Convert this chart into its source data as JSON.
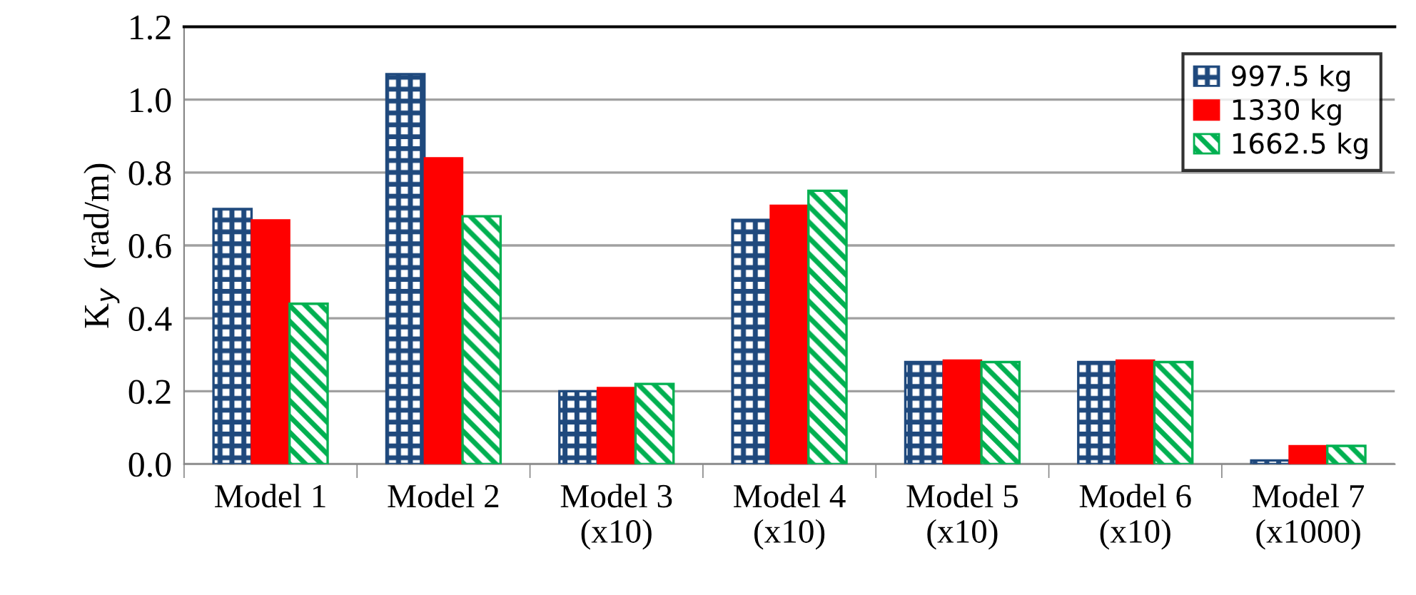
{
  "chart_data": {
    "type": "bar",
    "ylabel": "K$_{y}$  (rad/m)",
    "categories": [
      "Model 1",
      "Model 2",
      "Model 3\n(x10)",
      "Model 4\n(x10)",
      "Model 5\n(x10)",
      "Model 6\n(x10)",
      "Model 7\n(x1000)"
    ],
    "series": [
      {
        "name": "997.5 kg",
        "color": "#1f497d",
        "values": [
          0.7,
          1.07,
          0.2,
          0.67,
          0.28,
          0.28,
          0.01
        ]
      },
      {
        "name": "1330 kg",
        "color": "#ff0000",
        "values": [
          0.67,
          0.84,
          0.21,
          0.71,
          0.285,
          0.285,
          0.05
        ]
      },
      {
        "name": "1662.5 kg",
        "color": "#00b050",
        "values": [
          0.44,
          0.68,
          0.22,
          0.75,
          0.28,
          0.28,
          0.05
        ]
      }
    ],
    "ylim": [
      0,
      1.2
    ],
    "yticks": [
      {
        "value": 0,
        "label": "0.0"
      },
      {
        "value": 0.2,
        "label": "0.2"
      },
      {
        "value": 0.4,
        "label": "0.4"
      },
      {
        "value": 0.6,
        "label": "0.6"
      },
      {
        "value": 0.8,
        "label": "0.8"
      },
      {
        "value": 1.0,
        "label": "1.0"
      },
      {
        "value": 1.2,
        "label": "1.2"
      }
    ],
    "grid": "y",
    "legend": "top right"
  }
}
